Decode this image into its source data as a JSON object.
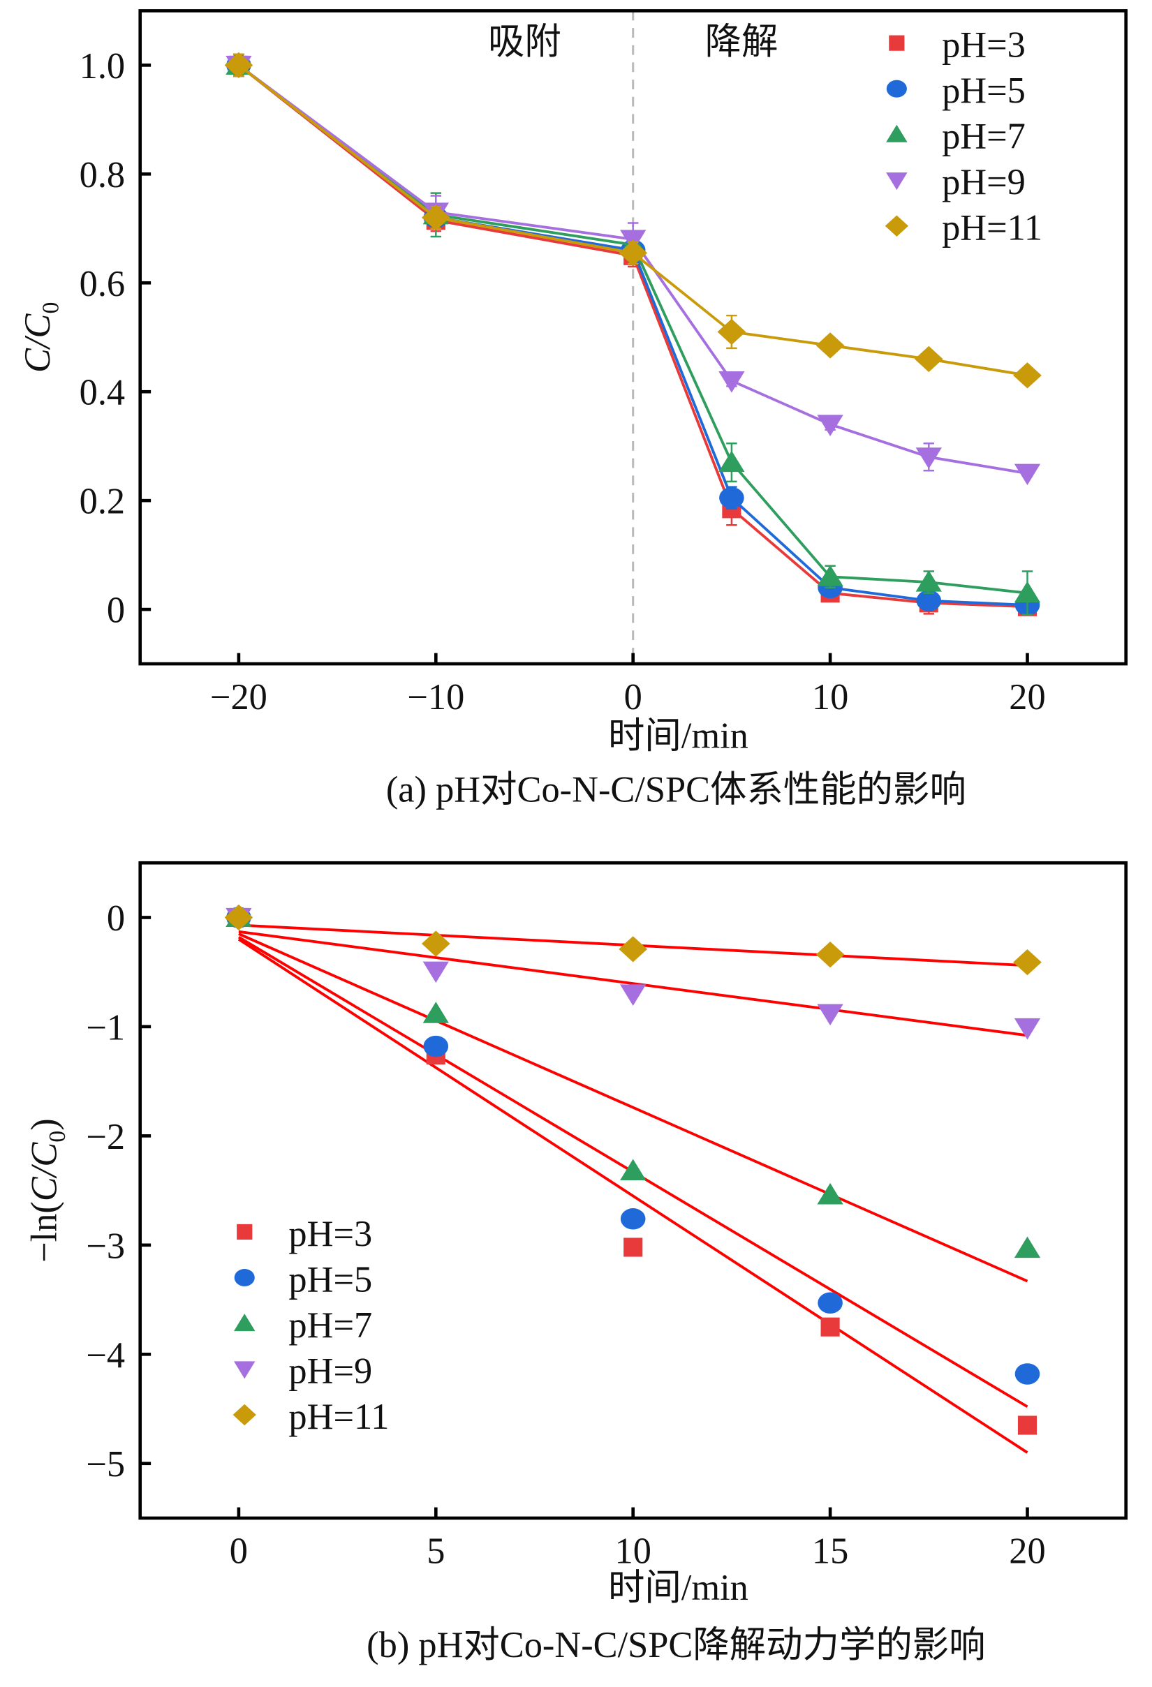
{
  "chart_data": [
    {
      "type": "line",
      "caption": "(a) pH对Co-N-C/SPC体系性能的影响",
      "xlabel": "时间/min",
      "ylabel": "C/C0",
      "ylabel_parts": {
        "main": "C/C",
        "sub": "0"
      },
      "xlim": [
        -25,
        25
      ],
      "ylim": [
        -0.1,
        1.1
      ],
      "xticks": [
        -20,
        -10,
        0,
        10,
        20
      ],
      "xtick_labels": [
        "−20",
        "−10",
        "0",
        "10",
        "20"
      ],
      "yticks": [
        0,
        0.2,
        0.4,
        0.6,
        0.8,
        1.0
      ],
      "ytick_labels": [
        "0",
        "0.2",
        "0.4",
        "0.6",
        "0.8",
        "1.0"
      ],
      "grid": false,
      "legend_position": "top-right",
      "annotations": [
        {
          "text": "吸附",
          "x": -5.5
        },
        {
          "text": "降解",
          "x": 5.5
        }
      ],
      "vline": {
        "x": 0,
        "style": "dashed",
        "color": "#bbbbbb"
      },
      "x": [
        -20,
        -10,
        0,
        5,
        10,
        15,
        20
      ],
      "series": [
        {
          "name": "pH=3",
          "color": "#e83a3a",
          "marker": "square",
          "values": [
            1.0,
            0.715,
            0.65,
            0.185,
            0.03,
            0.012,
            0.005
          ],
          "errors": [
            0.02,
            0.02,
            0.02,
            0.03,
            0.01,
            0.02,
            0.01
          ]
        },
        {
          "name": "pH=5",
          "color": "#1f6ad8",
          "marker": "circle",
          "values": [
            1.0,
            0.72,
            0.66,
            0.205,
            0.04,
            0.016,
            0.008
          ],
          "errors": [
            0.02,
            0.02,
            0.02,
            0.02,
            0.01,
            0.01,
            0.01
          ]
        },
        {
          "name": "pH=7",
          "color": "#2e9e5e",
          "marker": "triangle-up",
          "values": [
            1.0,
            0.725,
            0.67,
            0.27,
            0.06,
            0.05,
            0.03
          ],
          "errors": [
            0.02,
            0.04,
            0.02,
            0.035,
            0.02,
            0.02,
            0.04
          ]
        },
        {
          "name": "pH=9",
          "color": "#a66fe0",
          "marker": "triangle-down",
          "values": [
            1.0,
            0.73,
            0.68,
            0.42,
            0.34,
            0.28,
            0.25
          ],
          "errors": [
            0.02,
            0.03,
            0.03,
            0.01,
            0.01,
            0.025,
            0.005
          ]
        },
        {
          "name": "pH=11",
          "color": "#c99a0a",
          "marker": "diamond",
          "values": [
            1.0,
            0.72,
            0.655,
            0.51,
            0.485,
            0.46,
            0.43
          ],
          "errors": [
            0.02,
            0.02,
            0.02,
            0.03,
            0.005,
            0.005,
            0.005
          ]
        }
      ]
    },
    {
      "type": "scatter",
      "caption": "(b) pH对Co-N-C/SPC降解动力学的影响",
      "xlabel": "时间/min",
      "ylabel": "−ln(C/C0)",
      "ylabel_parts": {
        "pre": "−ln(",
        "main": "C/C",
        "sub": "0",
        "post": ")"
      },
      "xlim": [
        -2.5,
        22.5
      ],
      "ylim": [
        -5.5,
        0.5
      ],
      "xticks": [
        0,
        5,
        10,
        15,
        20
      ],
      "xtick_labels": [
        "0",
        "5",
        "10",
        "15",
        "20"
      ],
      "yticks": [
        0,
        -1,
        -2,
        -3,
        -4,
        -5
      ],
      "ytick_labels": [
        "0",
        "−1",
        "−2",
        "−3",
        "−4",
        "−5"
      ],
      "grid": false,
      "legend_position": "bottom-left",
      "x": [
        0,
        5,
        10,
        15,
        20
      ],
      "fit_color": "#ff0000",
      "series": [
        {
          "name": "pH=3",
          "color": "#e83a3a",
          "marker": "square",
          "values": [
            0,
            -1.26,
            -3.02,
            -3.75,
            -4.65
          ],
          "fit": [
            -0.2,
            -4.9
          ]
        },
        {
          "name": "pH=5",
          "color": "#1f6ad8",
          "marker": "circle",
          "values": [
            0,
            -1.18,
            -2.76,
            -3.53,
            -4.18
          ],
          "fit": [
            -0.18,
            -4.48
          ]
        },
        {
          "name": "pH=7",
          "color": "#2e9e5e",
          "marker": "triangle-up",
          "values": [
            0,
            -0.88,
            -2.32,
            -2.54,
            -3.03
          ],
          "fit": [
            -0.15,
            -3.33
          ]
        },
        {
          "name": "pH=9",
          "color": "#a66fe0",
          "marker": "triangle-down",
          "values": [
            0,
            -0.49,
            -0.7,
            -0.88,
            -1.01
          ],
          "fit": [
            -0.13,
            -1.08
          ]
        },
        {
          "name": "pH=11",
          "color": "#c99a0a",
          "marker": "diamond",
          "values": [
            0,
            -0.24,
            -0.29,
            -0.34,
            -0.41
          ],
          "fit": [
            -0.07,
            -0.44
          ]
        }
      ]
    }
  ]
}
